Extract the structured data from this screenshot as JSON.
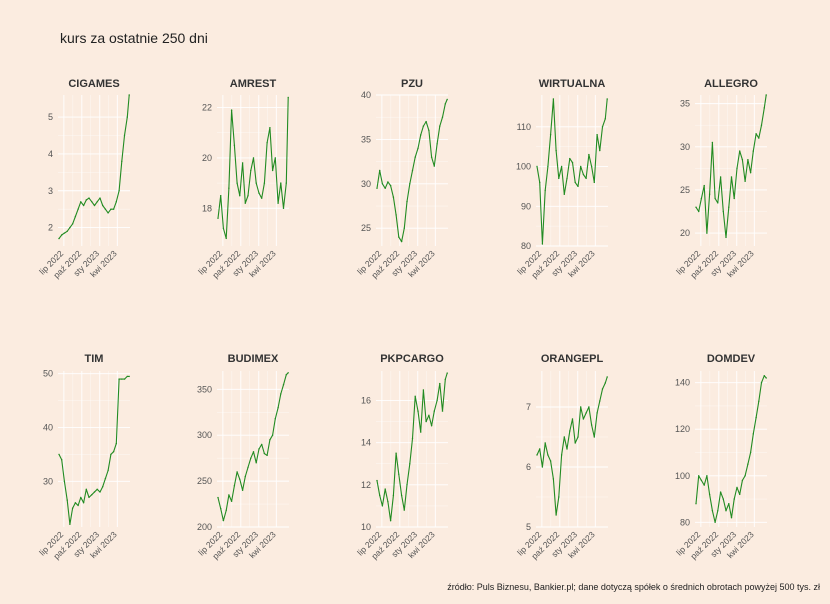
{
  "title": "kurs za ostatnie 250 dni",
  "caption": "źródło: Puls Biznesu, Bankier.pl; dane dotyczą spółek o średnich obrotach powyżej 500 tys. zł",
  "colors": {
    "background": "#fbece0",
    "line": "#228b22",
    "grid": "#ffffff"
  },
  "chart_data": [
    {
      "type": "line",
      "title": "CIGAMES",
      "x_ticks": [
        "lip 2022",
        "paź 2022",
        "sty 2023",
        "kwi 2023"
      ],
      "y_ticks": [
        2,
        3,
        4,
        5
      ],
      "ylim": [
        1.5,
        5.6
      ],
      "x": [
        "2022-06-06",
        "2022-06-20",
        "2022-07-04",
        "2022-07-18",
        "2022-08-01",
        "2022-08-15",
        "2022-08-29",
        "2022-09-12",
        "2022-09-26",
        "2022-10-10",
        "2022-10-24",
        "2022-11-07",
        "2022-11-21",
        "2022-12-05",
        "2022-12-19",
        "2023-01-02",
        "2023-01-16",
        "2023-01-30",
        "2023-02-13",
        "2023-02-27",
        "2023-03-13",
        "2023-03-27",
        "2023-04-10",
        "2023-04-24",
        "2023-05-08",
        "2023-05-22",
        "2023-06-01"
      ],
      "values": [
        1.7,
        1.8,
        1.85,
        1.9,
        2.0,
        2.1,
        2.3,
        2.5,
        2.7,
        2.6,
        2.75,
        2.8,
        2.7,
        2.6,
        2.7,
        2.8,
        2.6,
        2.5,
        2.4,
        2.5,
        2.5,
        2.7,
        3.0,
        3.8,
        4.5,
        5.0,
        5.6
      ]
    },
    {
      "type": "line",
      "title": "AMREST",
      "x_ticks": [
        "lip 2022",
        "paź 2022",
        "sty 2023",
        "kwi 2023"
      ],
      "y_ticks": [
        18,
        20,
        22
      ],
      "ylim": [
        16.5,
        22.5
      ],
      "x": [
        "2022-06-06",
        "2022-06-20",
        "2022-07-04",
        "2022-07-18",
        "2022-08-01",
        "2022-08-15",
        "2022-08-29",
        "2022-09-12",
        "2022-09-26",
        "2022-10-10",
        "2022-10-24",
        "2022-11-07",
        "2022-11-21",
        "2022-12-05",
        "2022-12-19",
        "2023-01-02",
        "2023-01-16",
        "2023-01-30",
        "2023-02-13",
        "2023-02-27",
        "2023-03-13",
        "2023-03-27",
        "2023-04-10",
        "2023-04-24",
        "2023-05-08",
        "2023-05-22",
        "2023-06-01"
      ],
      "values": [
        17.6,
        18.5,
        17.2,
        16.8,
        18.8,
        21.9,
        20.5,
        19.0,
        18.5,
        19.8,
        18.2,
        18.5,
        19.5,
        20.0,
        19.0,
        18.6,
        18.4,
        19.0,
        20.6,
        21.2,
        19.5,
        20.0,
        18.2,
        19.0,
        18.0,
        19.0,
        22.4
      ]
    },
    {
      "type": "line",
      "title": "PZU",
      "x_ticks": [
        "lip 2022",
        "paź 2022",
        "sty 2023",
        "kwi 2023"
      ],
      "y_ticks": [
        25,
        30,
        35,
        40
      ],
      "ylim": [
        23.0,
        40.0
      ],
      "x": [
        "2022-06-06",
        "2022-06-20",
        "2022-07-04",
        "2022-07-18",
        "2022-08-01",
        "2022-08-15",
        "2022-08-29",
        "2022-09-12",
        "2022-09-26",
        "2022-10-10",
        "2022-10-24",
        "2022-11-07",
        "2022-11-21",
        "2022-12-05",
        "2022-12-19",
        "2023-01-02",
        "2023-01-16",
        "2023-01-30",
        "2023-02-13",
        "2023-02-27",
        "2023-03-13",
        "2023-03-27",
        "2023-04-10",
        "2023-04-24",
        "2023-05-08",
        "2023-05-22",
        "2023-06-01"
      ],
      "values": [
        29.5,
        31.5,
        30.0,
        29.5,
        30.2,
        29.8,
        28.5,
        26.5,
        24.0,
        23.5,
        25.0,
        28.0,
        30.0,
        31.5,
        33.0,
        34.0,
        35.5,
        36.5,
        37.0,
        36.0,
        33.0,
        32.0,
        34.5,
        36.5,
        37.5,
        39.0,
        39.5
      ]
    },
    {
      "type": "line",
      "title": "WIRTUALNA",
      "x_ticks": [
        "lip 2022",
        "paź 2022",
        "sty 2023",
        "kwi 2023"
      ],
      "y_ticks": [
        80,
        90,
        100,
        110
      ],
      "ylim": [
        80.0,
        118.0
      ],
      "x": [
        "2022-06-06",
        "2022-06-20",
        "2022-07-04",
        "2022-07-18",
        "2022-08-01",
        "2022-08-15",
        "2022-08-29",
        "2022-09-12",
        "2022-09-26",
        "2022-10-10",
        "2022-10-24",
        "2022-11-07",
        "2022-11-21",
        "2022-12-05",
        "2022-12-19",
        "2023-01-02",
        "2023-01-16",
        "2023-01-30",
        "2023-02-13",
        "2023-02-27",
        "2023-03-13",
        "2023-03-27",
        "2023-04-10",
        "2023-04-24",
        "2023-05-08",
        "2023-05-22",
        "2023-06-01"
      ],
      "values": [
        100,
        96,
        80.5,
        94,
        100,
        108,
        117,
        104,
        97,
        100,
        93,
        97,
        102,
        101,
        96,
        95,
        100,
        98,
        97,
        103,
        100,
        96,
        108,
        104,
        110,
        112,
        117
      ]
    },
    {
      "type": "line",
      "title": "ALLEGRO",
      "x_ticks": [
        "lip 2022",
        "paź 2022",
        "sty 2023",
        "kwi 2023"
      ],
      "y_ticks": [
        20,
        25,
        30,
        35
      ],
      "ylim": [
        18.5,
        36.0
      ],
      "x": [
        "2022-06-06",
        "2022-06-20",
        "2022-07-04",
        "2022-07-18",
        "2022-08-01",
        "2022-08-15",
        "2022-08-29",
        "2022-09-12",
        "2022-09-26",
        "2022-10-10",
        "2022-10-24",
        "2022-11-07",
        "2022-11-21",
        "2022-12-05",
        "2022-12-19",
        "2023-01-02",
        "2023-01-16",
        "2023-01-30",
        "2023-02-13",
        "2023-02-27",
        "2023-03-13",
        "2023-03-27",
        "2023-04-10",
        "2023-04-24",
        "2023-05-08",
        "2023-05-22",
        "2023-06-01"
      ],
      "values": [
        23,
        22.5,
        24,
        25.5,
        20,
        24.5,
        30.5,
        24,
        23.5,
        26.5,
        22.5,
        19.5,
        23,
        26.5,
        24,
        27.5,
        29.5,
        28.5,
        26,
        28.5,
        27,
        29.5,
        31.5,
        31,
        32.5,
        34.5,
        36
      ]
    },
    {
      "type": "line",
      "title": "TIM",
      "x_ticks": [
        "lip 2022",
        "paź 2022",
        "sty 2023",
        "kwi 2023"
      ],
      "y_ticks": [
        30,
        40,
        50
      ],
      "ylim": [
        21.5,
        50.5
      ],
      "x": [
        "2022-06-06",
        "2022-06-20",
        "2022-07-04",
        "2022-07-18",
        "2022-08-01",
        "2022-08-15",
        "2022-08-29",
        "2022-09-12",
        "2022-09-26",
        "2022-10-10",
        "2022-10-24",
        "2022-11-07",
        "2022-11-21",
        "2022-12-05",
        "2022-12-19",
        "2023-01-02",
        "2023-01-16",
        "2023-01-30",
        "2023-02-13",
        "2023-02-27",
        "2023-03-13",
        "2023-03-27",
        "2023-04-10",
        "2023-04-24",
        "2023-05-08",
        "2023-05-22",
        "2023-06-01"
      ],
      "values": [
        35,
        34,
        30,
        26.5,
        22,
        25,
        26,
        25.5,
        27,
        26,
        28.5,
        27,
        27.5,
        28,
        28.5,
        28,
        29,
        30.5,
        32,
        35,
        35.5,
        37,
        49,
        49,
        49,
        49.5,
        49.5
      ]
    },
    {
      "type": "line",
      "title": "BUDIMEX",
      "x_ticks": [
        "lip 2022",
        "paź 2022",
        "sty 2023",
        "kwi 2023"
      ],
      "y_ticks": [
        200,
        250,
        300,
        350
      ],
      "ylim": [
        200.0,
        370.0
      ],
      "x": [
        "2022-06-06",
        "2022-06-20",
        "2022-07-04",
        "2022-07-18",
        "2022-08-01",
        "2022-08-15",
        "2022-08-29",
        "2022-09-12",
        "2022-09-26",
        "2022-10-10",
        "2022-10-24",
        "2022-11-07",
        "2022-11-21",
        "2022-12-05",
        "2022-12-19",
        "2023-01-02",
        "2023-01-16",
        "2023-01-30",
        "2023-02-13",
        "2023-02-27",
        "2023-03-13",
        "2023-03-27",
        "2023-04-10",
        "2023-04-24",
        "2023-05-08",
        "2023-05-22",
        "2023-06-01"
      ],
      "values": [
        232,
        220,
        207,
        218,
        235,
        228,
        245,
        260,
        252,
        240,
        255,
        265,
        275,
        282,
        270,
        285,
        290,
        280,
        278,
        295,
        300,
        318,
        330,
        345,
        355,
        366,
        368
      ]
    },
    {
      "type": "line",
      "title": "PKPCARGO",
      "x_ticks": [
        "lip 2022",
        "paź 2022",
        "sty 2023",
        "kwi 2023"
      ],
      "y_ticks": [
        10,
        12,
        14,
        16
      ],
      "ylim": [
        10.0,
        17.4
      ],
      "x": [
        "2022-06-06",
        "2022-06-20",
        "2022-07-04",
        "2022-07-18",
        "2022-08-01",
        "2022-08-15",
        "2022-08-29",
        "2022-09-12",
        "2022-09-26",
        "2022-10-10",
        "2022-10-24",
        "2022-11-07",
        "2022-11-21",
        "2022-12-05",
        "2022-12-19",
        "2023-01-02",
        "2023-01-16",
        "2023-01-30",
        "2023-02-13",
        "2023-02-27",
        "2023-03-13",
        "2023-03-27",
        "2023-04-10",
        "2023-04-24",
        "2023-05-08",
        "2023-05-22",
        "2023-06-01"
      ],
      "values": [
        12.2,
        11.5,
        11.0,
        11.8,
        11.2,
        10.3,
        11.5,
        13.5,
        12.5,
        11.5,
        10.8,
        12.0,
        13.0,
        14.2,
        16.2,
        15.5,
        14.5,
        16.5,
        15.0,
        15.3,
        14.8,
        15.5,
        16.0,
        16.8,
        15.5,
        17.0,
        17.3
      ]
    },
    {
      "type": "line",
      "title": "ORANGEPL",
      "x_ticks": [
        "lip 2022",
        "paź 2022",
        "sty 2023",
        "kwi 2023"
      ],
      "y_ticks": [
        5,
        6,
        7
      ],
      "ylim": [
        5.0,
        7.6
      ],
      "x": [
        "2022-06-06",
        "2022-06-20",
        "2022-07-04",
        "2022-07-18",
        "2022-08-01",
        "2022-08-15",
        "2022-08-29",
        "2022-09-12",
        "2022-09-26",
        "2022-10-10",
        "2022-10-24",
        "2022-11-07",
        "2022-11-21",
        "2022-12-05",
        "2022-12-19",
        "2023-01-02",
        "2023-01-16",
        "2023-01-30",
        "2023-02-13",
        "2023-02-27",
        "2023-03-13",
        "2023-03-27",
        "2023-04-10",
        "2023-04-24",
        "2023-05-08",
        "2023-05-22",
        "2023-06-01"
      ],
      "values": [
        6.2,
        6.3,
        6.0,
        6.4,
        6.2,
        6.1,
        5.8,
        5.2,
        5.5,
        6.2,
        6.5,
        6.3,
        6.6,
        6.8,
        6.4,
        6.5,
        7.0,
        6.8,
        6.9,
        7.0,
        6.7,
        6.5,
        6.9,
        7.1,
        7.3,
        7.4,
        7.5
      ]
    },
    {
      "type": "line",
      "title": "DOMDEV",
      "x_ticks": [
        "lip 2022",
        "paź 2022",
        "sty 2023",
        "kwi 2023"
      ],
      "y_ticks": [
        80,
        100,
        120,
        140
      ],
      "ylim": [
        78.0,
        145.0
      ],
      "x": [
        "2022-06-06",
        "2022-06-20",
        "2022-07-04",
        "2022-07-18",
        "2022-08-01",
        "2022-08-15",
        "2022-08-29",
        "2022-09-12",
        "2022-09-26",
        "2022-10-10",
        "2022-10-24",
        "2022-11-07",
        "2022-11-21",
        "2022-12-05",
        "2022-12-19",
        "2023-01-02",
        "2023-01-16",
        "2023-01-30",
        "2023-02-13",
        "2023-02-27",
        "2023-03-13",
        "2023-03-27",
        "2023-04-10",
        "2023-04-24",
        "2023-05-08",
        "2023-05-22",
        "2023-06-01"
      ],
      "values": [
        88,
        100,
        98,
        96,
        100,
        92,
        85,
        80,
        85,
        93,
        90,
        85,
        88,
        82,
        90,
        95,
        92,
        98,
        100,
        105,
        110,
        118,
        125,
        132,
        140,
        143,
        142
      ]
    }
  ]
}
